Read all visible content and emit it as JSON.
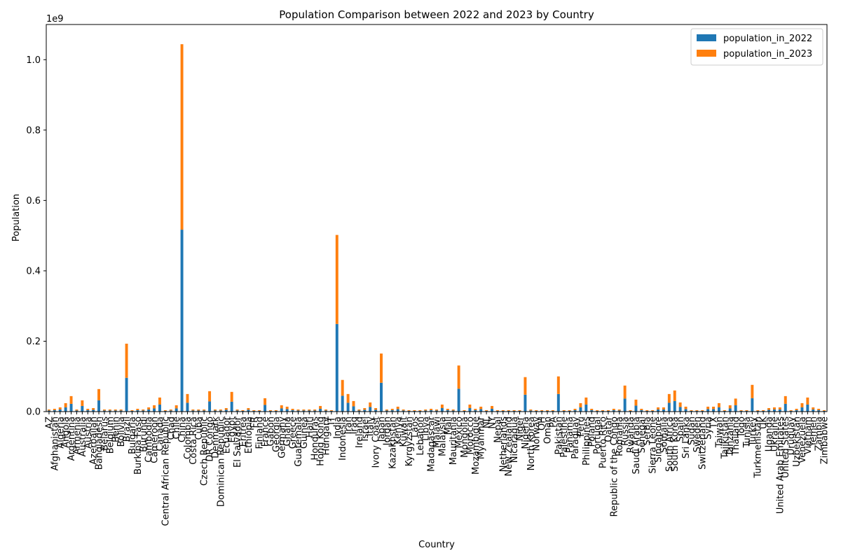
{
  "chart_data": {
    "type": "bar",
    "stacked": true,
    "title": "Population Comparison between 2022 and 2023 by Country",
    "xlabel": "Country",
    "ylabel": "Population",
    "y_offset_label": "1e9",
    "ylim": [
      0,
      1.1
    ],
    "yticks": [
      "0.0",
      "0.2",
      "0.4",
      "0.6",
      "0.8",
      "1.0"
    ],
    "legend_position": "top-right",
    "grid": false,
    "categories": [
      "AZ",
      "Afghanistan",
      "Algeria",
      "Angola",
      "Argentina",
      "Armenia",
      "Australia",
      "Austria",
      "Azerbaijan",
      "Bangladesh",
      "Belarus",
      "Belgium",
      "Benin",
      "Bolivia",
      "Brazil",
      "Bulgaria",
      "Burkina Faso",
      "Burundi",
      "Cambodia",
      "Cameroon",
      "Canada",
      "Central African Republic",
      "Chad",
      "Chile",
      "China",
      "Colombia",
      "Costa Rica",
      "Cuba",
      "Czech Republic",
      "DR Congo",
      "Denmark",
      "Dominican Republic",
      "Ecuador",
      "Egypt",
      "El Salvador",
      "Eritrea",
      "Ethiopia",
      "FR",
      "Finland",
      "France",
      "Gabon",
      "Georgia",
      "Germany",
      "Ghana",
      "Greece",
      "Guatemala",
      "Guinea",
      "Haiti",
      "Honduras",
      "Hong Kong",
      "Hungary",
      "IT",
      "India",
      "Indonesia",
      "Iran",
      "Iraq",
      "Ireland",
      "Israel",
      "Italy",
      "Ivory Coast",
      "Japan",
      "Jordan",
      "Kazakhstan",
      "Kenya",
      "Kuwait",
      "Kyrgyzstan",
      "Laos",
      "Lebanon",
      "Libya",
      "Madagascar",
      "Malawi",
      "Malaysia",
      "Mali",
      "Mauritania",
      "Mexico",
      "Mongolia",
      "Morocco",
      "Mozambique",
      "Myanmar",
      "NL",
      "NY",
      "Nepal",
      "Netherlands",
      "New Zealand",
      "Nicaragua",
      "Niger",
      "Nigeria",
      "North Korea",
      "Norway",
      "OH",
      "Oman",
      "PA",
      "Pakistan",
      "Palestine",
      "Panama",
      "Paraguay",
      "Peru",
      "Philippines",
      "Poland",
      "Portugal",
      "Puerto Rico",
      "Qatar",
      "Republic of the Congo",
      "Romania",
      "Russia",
      "Rwanda",
      "Saudi Arabia",
      "Senegal",
      "Serbia",
      "Sierra Leone",
      "Singapore",
      "Somalia",
      "South Africa",
      "South Korea",
      "Spain",
      "Sri Lanka",
      "Sudan",
      "Sweden",
      "Switzerland",
      "Syria",
      "TX",
      "Taiwan",
      "Tajikistan",
      "Tanzania",
      "Thailand",
      "Togo",
      "Tunisia",
      "Turkey",
      "Turkmenistan",
      "UK",
      "Uganda",
      "Ukraine",
      "United Arab Emirates",
      "United States",
      "Uruguay",
      "Uzbekistan",
      "Venezuela",
      "Vietnam",
      "Yemen",
      "Zambia",
      "Zimbabwe"
    ],
    "series": [
      {
        "name": "population_in_2022",
        "color": "#1f77b4",
        "values": [
          0.003,
          0.004,
          0.006,
          0.012,
          0.022,
          0.003,
          0.016,
          0.004,
          0.005,
          0.032,
          0.003,
          0.003,
          0.003,
          0.003,
          0.096,
          0.002,
          0.004,
          0.003,
          0.006,
          0.009,
          0.02,
          0.002,
          0.003,
          0.009,
          0.517,
          0.025,
          0.003,
          0.003,
          0.003,
          0.029,
          0.003,
          0.003,
          0.005,
          0.028,
          0.003,
          0.002,
          0.005,
          0.002,
          0.002,
          0.019,
          0.002,
          0.002,
          0.009,
          0.007,
          0.004,
          0.003,
          0.003,
          0.003,
          0.003,
          0.008,
          0.003,
          0.002,
          0.249,
          0.045,
          0.025,
          0.015,
          0.003,
          0.005,
          0.013,
          0.005,
          0.082,
          0.003,
          0.004,
          0.007,
          0.003,
          0.002,
          0.002,
          0.002,
          0.003,
          0.004,
          0.003,
          0.01,
          0.004,
          0.003,
          0.065,
          0.002,
          0.01,
          0.004,
          0.007,
          0.002,
          0.008,
          0.002,
          0.002,
          0.002,
          0.002,
          0.002,
          0.048,
          0.003,
          0.002,
          0.002,
          0.002,
          0.002,
          0.05,
          0.002,
          0.002,
          0.004,
          0.012,
          0.02,
          0.004,
          0.002,
          0.002,
          0.002,
          0.004,
          0.003,
          0.037,
          0.002,
          0.017,
          0.004,
          0.002,
          0.002,
          0.006,
          0.006,
          0.025,
          0.03,
          0.013,
          0.007,
          0.002,
          0.002,
          0.002,
          0.007,
          0.007,
          0.012,
          0.002,
          0.009,
          0.018,
          0.002,
          0.002,
          0.038,
          0.002,
          0.002,
          0.005,
          0.006,
          0.006,
          0.022,
          0.002,
          0.004,
          0.012,
          0.02,
          0.006,
          0.004,
          0.002
        ]
      },
      {
        "name": "population_in_2023",
        "color": "#ff7f0e",
        "values": [
          0.003,
          0.004,
          0.006,
          0.012,
          0.022,
          0.003,
          0.016,
          0.004,
          0.005,
          0.032,
          0.003,
          0.003,
          0.003,
          0.003,
          0.097,
          0.002,
          0.004,
          0.003,
          0.006,
          0.009,
          0.02,
          0.002,
          0.003,
          0.009,
          0.527,
          0.025,
          0.003,
          0.003,
          0.003,
          0.029,
          0.003,
          0.003,
          0.005,
          0.028,
          0.003,
          0.002,
          0.005,
          0.002,
          0.002,
          0.019,
          0.002,
          0.002,
          0.009,
          0.007,
          0.004,
          0.003,
          0.003,
          0.003,
          0.003,
          0.008,
          0.003,
          0.002,
          0.253,
          0.045,
          0.025,
          0.015,
          0.003,
          0.005,
          0.013,
          0.005,
          0.083,
          0.003,
          0.004,
          0.007,
          0.003,
          0.002,
          0.002,
          0.002,
          0.003,
          0.004,
          0.003,
          0.01,
          0.004,
          0.003,
          0.066,
          0.002,
          0.01,
          0.004,
          0.007,
          0.002,
          0.008,
          0.002,
          0.002,
          0.002,
          0.002,
          0.002,
          0.05,
          0.003,
          0.002,
          0.002,
          0.002,
          0.002,
          0.05,
          0.002,
          0.002,
          0.004,
          0.012,
          0.02,
          0.004,
          0.002,
          0.002,
          0.002,
          0.004,
          0.003,
          0.037,
          0.002,
          0.017,
          0.004,
          0.002,
          0.002,
          0.006,
          0.006,
          0.025,
          0.03,
          0.013,
          0.007,
          0.002,
          0.002,
          0.002,
          0.007,
          0.007,
          0.012,
          0.002,
          0.009,
          0.019,
          0.002,
          0.002,
          0.038,
          0.002,
          0.002,
          0.005,
          0.006,
          0.006,
          0.022,
          0.002,
          0.004,
          0.012,
          0.02,
          0.006,
          0.004,
          0.002
        ]
      }
    ]
  }
}
